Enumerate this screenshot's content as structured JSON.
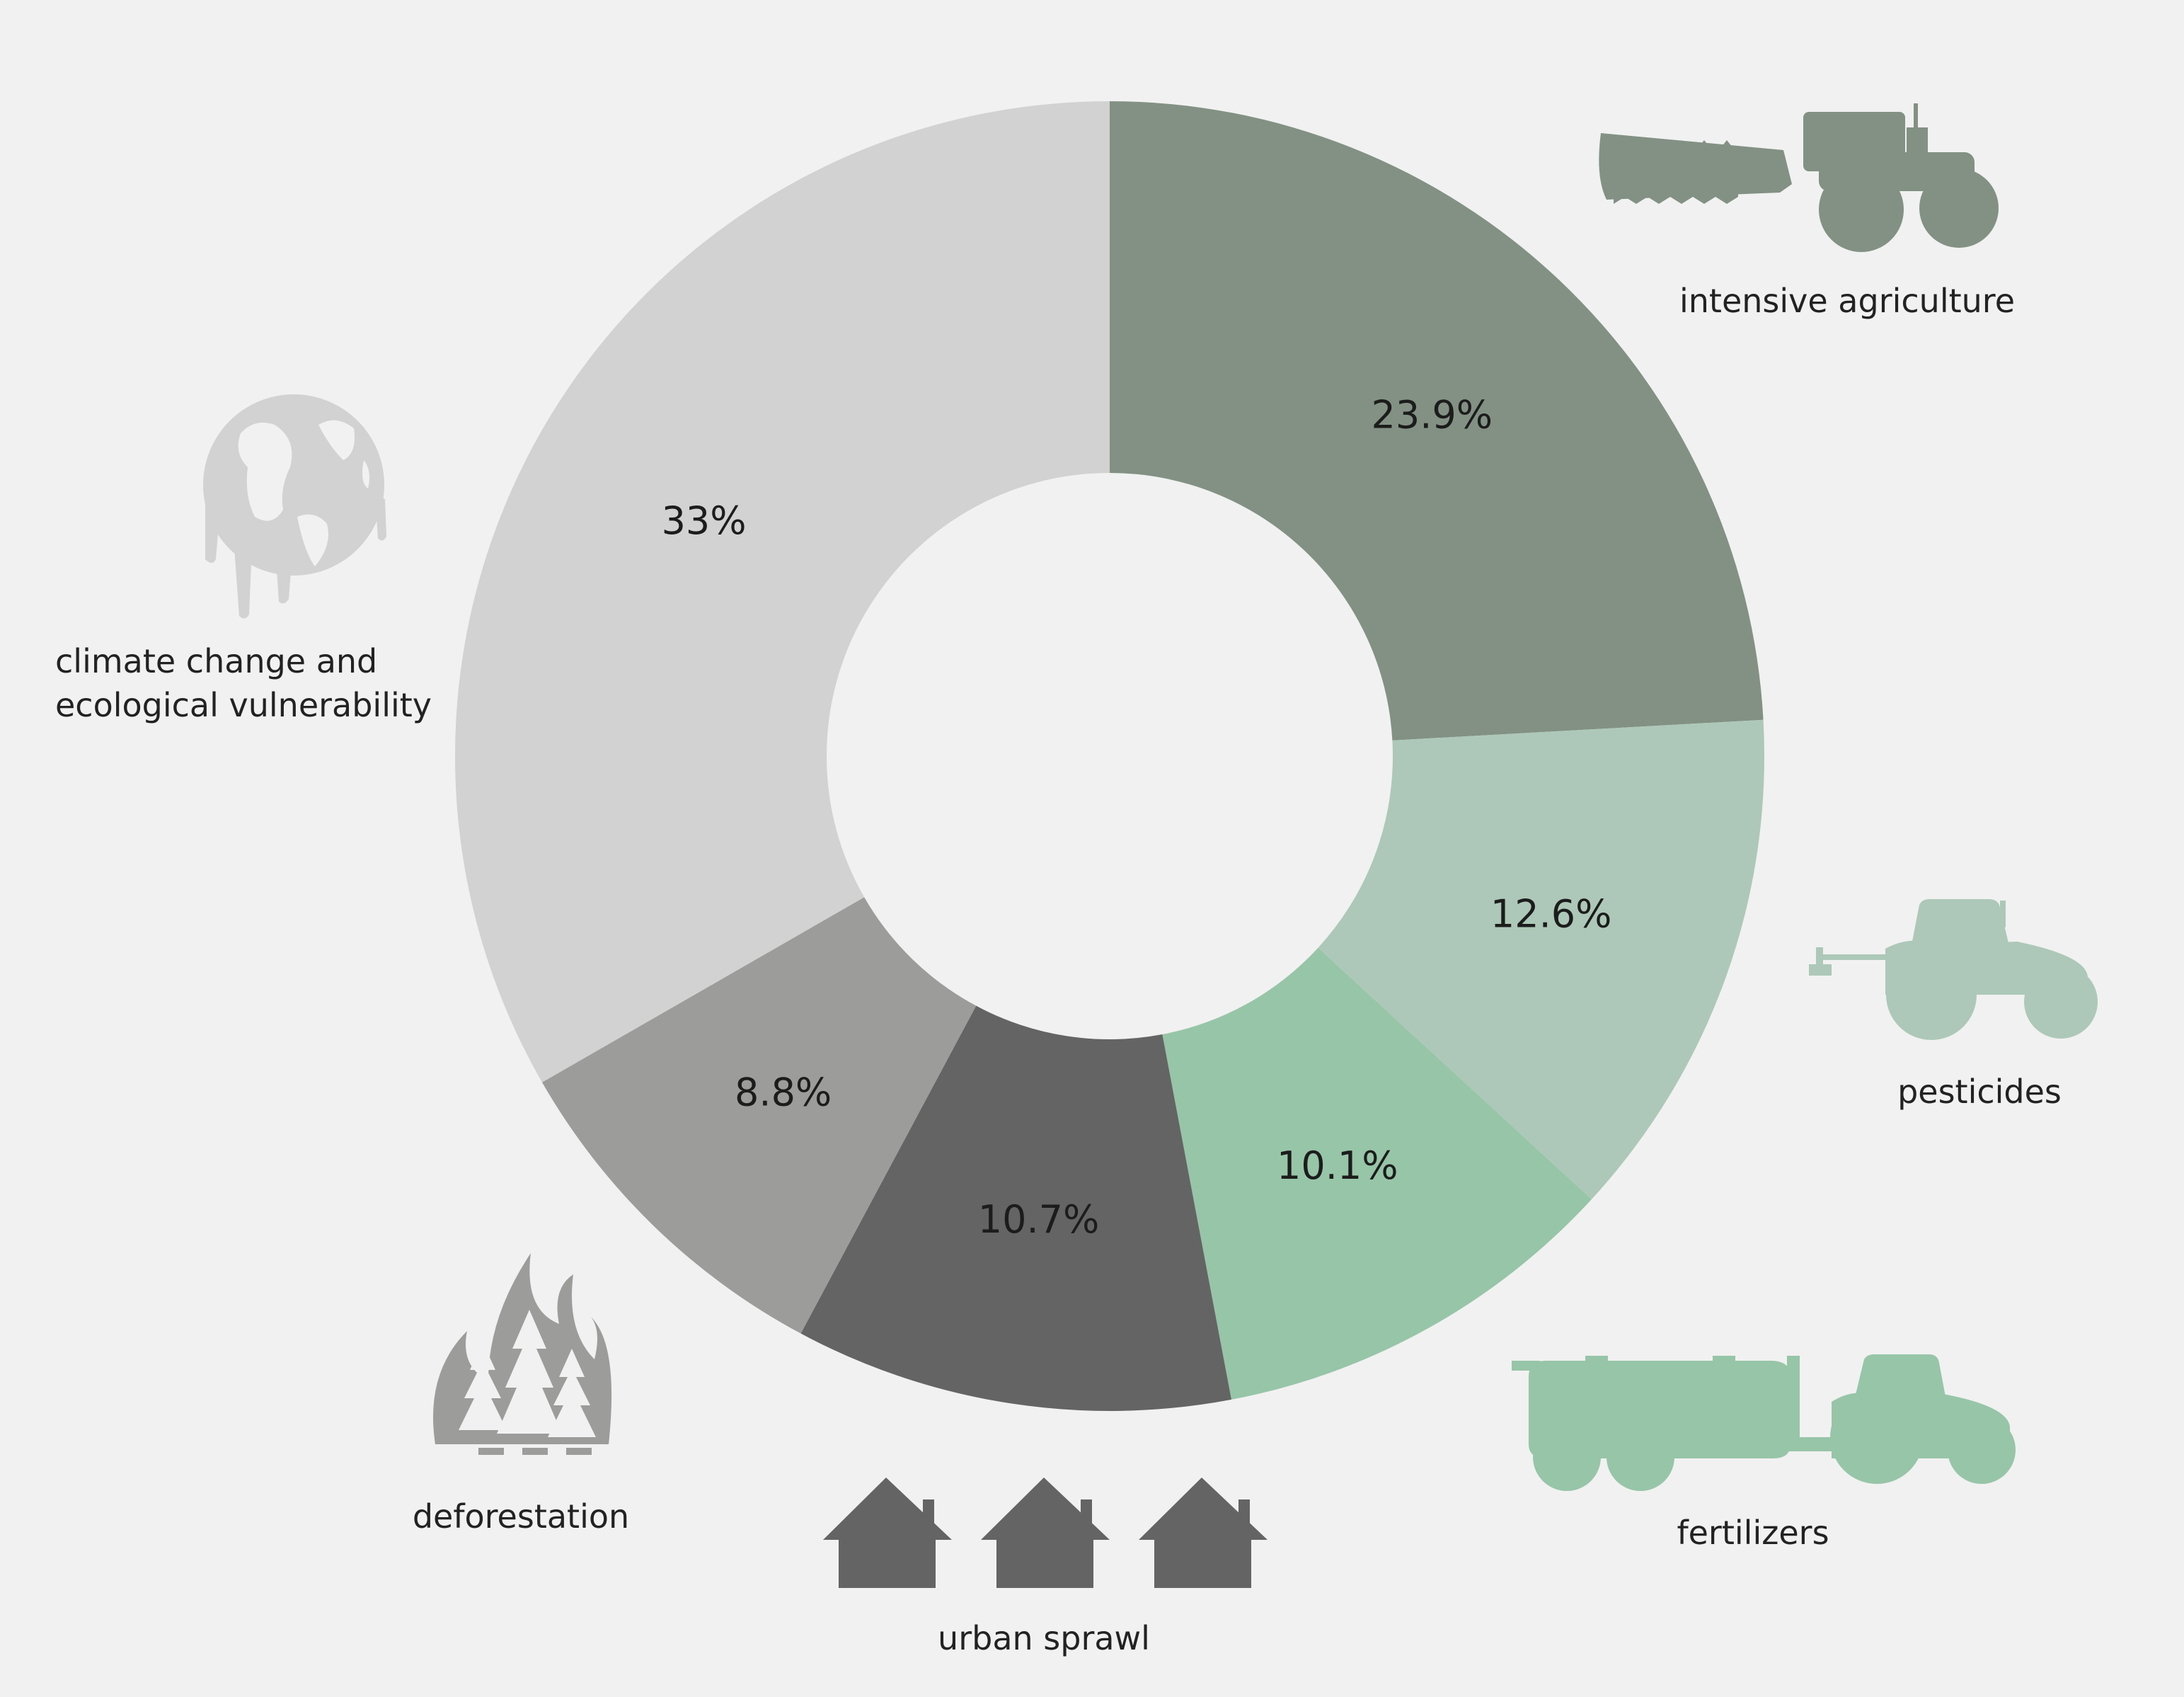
{
  "chart_data": {
    "type": "pie",
    "donut": true,
    "title": "",
    "unit": "%",
    "slices": [
      {
        "label": "intensive agriculture",
        "value": 23.9,
        "value_label": "23.9%",
        "color": "#829184",
        "icon": "tractor-plough-icon"
      },
      {
        "label": "pesticides",
        "value": 12.6,
        "value_label": "12.6%",
        "color": "#adc8b8",
        "icon": "tractor-sprayer-icon"
      },
      {
        "label": "fertilizers",
        "value": 10.1,
        "value_label": "10.1%",
        "color": "#97c5a8",
        "icon": "tractor-tanker-icon"
      },
      {
        "label": "urban sprawl",
        "value": 10.7,
        "value_label": "10.7%",
        "color": "#646464",
        "icon": "houses-icon"
      },
      {
        "label": "deforestation",
        "value": 8.8,
        "value_label": "8.8%",
        "color": "#9c9c9b",
        "icon": "forest-fire-icon"
      },
      {
        "label": "climate change and ecological vulnerability",
        "label_lines": [
          "climate change and",
          "ecological vulnerability"
        ],
        "value": 33,
        "value_label": "33%",
        "color": "#d2d2d2",
        "icon": "melting-globe-icon"
      }
    ],
    "legend": "none",
    "start_angle": "12 o'clock",
    "direction": "clockwise"
  }
}
